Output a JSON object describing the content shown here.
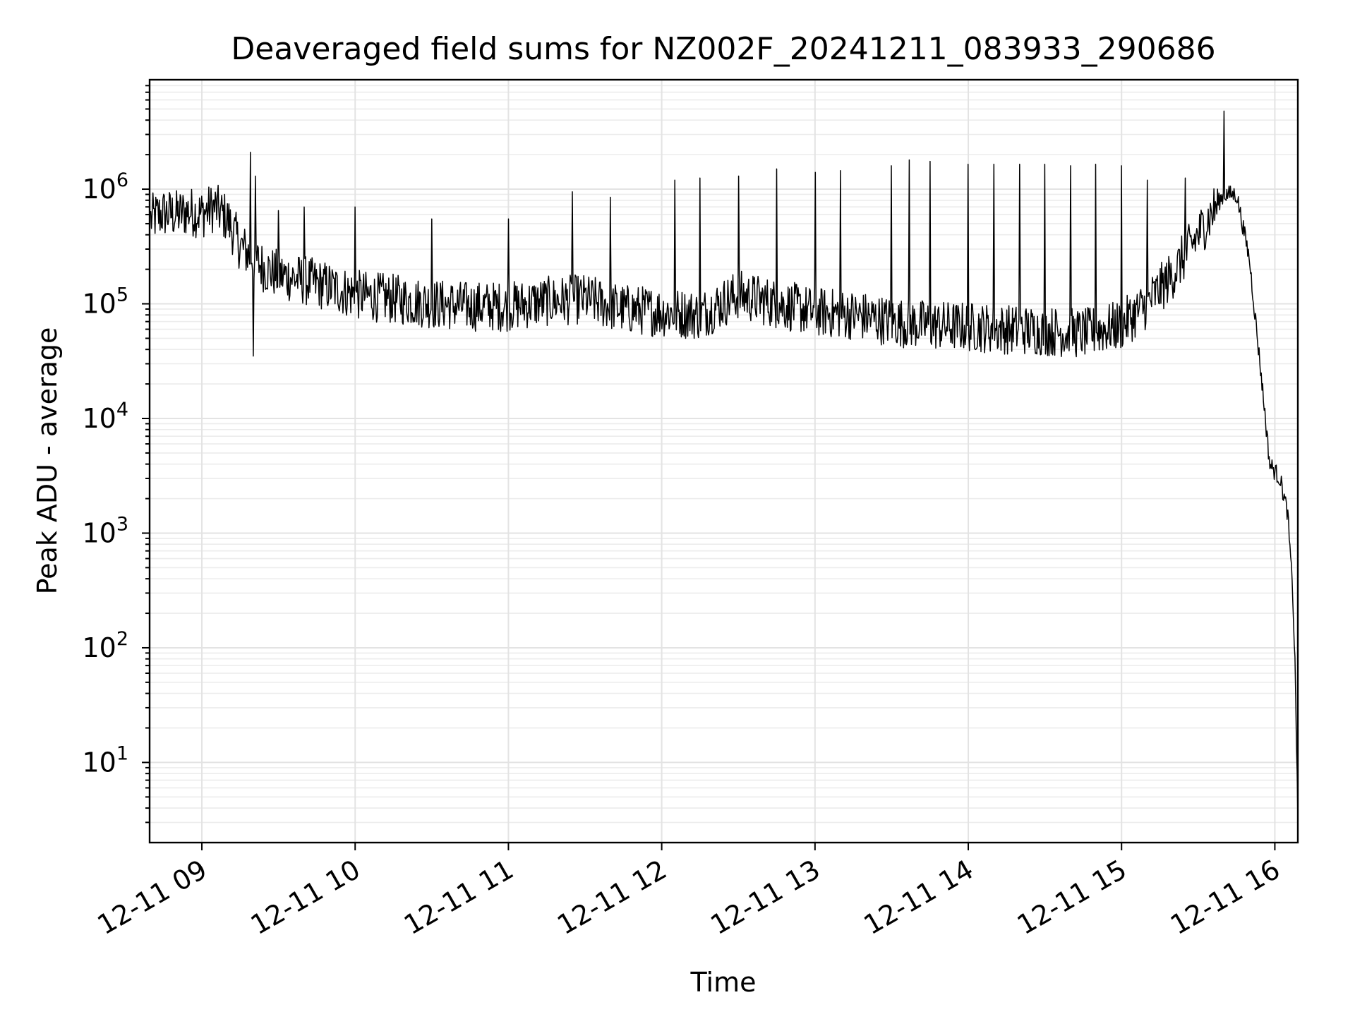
{
  "chart_data": {
    "type": "line",
    "title": "Deaveraged field sums for NZ002F_20241211_083933_290686",
    "xlabel": "Time",
    "ylabel": "Peak ADU - average",
    "x_scale": "time",
    "y_scale": "log",
    "xlim": [
      "2024-12-11 08:39:33",
      "2024-12-11 16:09:00"
    ],
    "ylim": [
      2,
      9000000
    ],
    "grid": true,
    "legend": "none",
    "line_color": "#000000",
    "x_ticks": [
      {
        "value": "2024-12-11 09:00",
        "label": "12-11 09"
      },
      {
        "value": "2024-12-11 10:00",
        "label": "12-11 10"
      },
      {
        "value": "2024-12-11 11:00",
        "label": "12-11 11"
      },
      {
        "value": "2024-12-11 12:00",
        "label": "12-11 12"
      },
      {
        "value": "2024-12-11 13:00",
        "label": "12-11 13"
      },
      {
        "value": "2024-12-11 14:00",
        "label": "12-11 14"
      },
      {
        "value": "2024-12-11 15:00",
        "label": "12-11 15"
      },
      {
        "value": "2024-12-11 16:00",
        "label": "12-11 16"
      }
    ],
    "y_ticks": [
      {
        "value": 10,
        "base": "10",
        "exp": "1"
      },
      {
        "value": 100,
        "base": "10",
        "exp": "2"
      },
      {
        "value": 1000,
        "base": "10",
        "exp": "3"
      },
      {
        "value": 10000,
        "base": "10",
        "exp": "4"
      },
      {
        "value": 100000,
        "base": "10",
        "exp": "5"
      },
      {
        "value": 1000000,
        "base": "10",
        "exp": "6"
      }
    ],
    "series": [
      {
        "points": [
          [
            "2024-12-11 08:40",
            550000
          ],
          [
            "2024-12-11 08:45",
            620000
          ],
          [
            "2024-12-11 08:50",
            600000
          ],
          [
            "2024-12-11 08:55",
            640000
          ],
          [
            "2024-12-11 09:00",
            610000
          ],
          [
            "2024-12-11 09:05",
            700000
          ],
          [
            "2024-12-11 09:10",
            550000
          ],
          [
            "2024-12-11 09:15",
            320000
          ],
          [
            "2024-12-11 09:20",
            250000
          ],
          [
            "2024-12-11 09:25",
            200000
          ],
          [
            "2024-12-11 09:30",
            180000
          ],
          [
            "2024-12-11 09:40",
            160000
          ],
          [
            "2024-12-11 09:50",
            140000
          ],
          [
            "2024-12-11 10:00",
            120000
          ],
          [
            "2024-12-11 10:15",
            110000
          ],
          [
            "2024-12-11 10:30",
            100000
          ],
          [
            "2024-12-11 10:45",
            95000
          ],
          [
            "2024-12-11 11:00",
            95000
          ],
          [
            "2024-12-11 11:15",
            105000
          ],
          [
            "2024-12-11 11:30",
            110000
          ],
          [
            "2024-12-11 11:45",
            90000
          ],
          [
            "2024-12-11 12:00",
            85000
          ],
          [
            "2024-12-11 12:15",
            80000
          ],
          [
            "2024-12-11 12:30",
            120000
          ],
          [
            "2024-12-11 12:45",
            100000
          ],
          [
            "2024-12-11 13:00",
            85000
          ],
          [
            "2024-12-11 13:15",
            80000
          ],
          [
            "2024-12-11 13:30",
            70000
          ],
          [
            "2024-12-11 13:45",
            65000
          ],
          [
            "2024-12-11 14:00",
            63000
          ],
          [
            "2024-12-11 14:15",
            60000
          ],
          [
            "2024-12-11 14:30",
            58000
          ],
          [
            "2024-12-11 14:45",
            55000
          ],
          [
            "2024-12-11 15:00",
            65000
          ],
          [
            "2024-12-11 15:10",
            100000
          ],
          [
            "2024-12-11 15:20",
            180000
          ],
          [
            "2024-12-11 15:30",
            400000
          ],
          [
            "2024-12-11 15:40",
            900000
          ],
          [
            "2024-12-11 15:45",
            900000
          ],
          [
            "2024-12-11 15:50",
            250000
          ],
          [
            "2024-12-11 15:55",
            20000
          ],
          [
            "2024-12-11 15:58",
            4000
          ],
          [
            "2024-12-11 16:02",
            3000
          ],
          [
            "2024-12-11 16:05",
            1500
          ],
          [
            "2024-12-11 16:07",
            300
          ],
          [
            "2024-12-11 16:08",
            60
          ],
          [
            "2024-12-11 16:09",
            3
          ]
        ],
        "spikes": [
          [
            "2024-12-11 09:19",
            2100000
          ],
          [
            "2024-12-11 09:20",
            35000
          ],
          [
            "2024-12-11 09:21",
            1300000
          ],
          [
            "2024-12-11 09:30",
            650000
          ],
          [
            "2024-12-11 09:40",
            700000
          ],
          [
            "2024-12-11 10:00",
            700000
          ],
          [
            "2024-12-11 10:30",
            550000
          ],
          [
            "2024-12-11 11:00",
            550000
          ],
          [
            "2024-12-11 11:25",
            950000
          ],
          [
            "2024-12-11 11:40",
            850000
          ],
          [
            "2024-12-11 12:05",
            1200000
          ],
          [
            "2024-12-11 12:15",
            1250000
          ],
          [
            "2024-12-11 12:30",
            1300000
          ],
          [
            "2024-12-11 12:45",
            1500000
          ],
          [
            "2024-12-11 13:00",
            1400000
          ],
          [
            "2024-12-11 13:10",
            1450000
          ],
          [
            "2024-12-11 13:30",
            1600000
          ],
          [
            "2024-12-11 13:37",
            1800000
          ],
          [
            "2024-12-11 13:45",
            1750000
          ],
          [
            "2024-12-11 14:00",
            1650000
          ],
          [
            "2024-12-11 14:10",
            1650000
          ],
          [
            "2024-12-11 14:20",
            1650000
          ],
          [
            "2024-12-11 14:30",
            1650000
          ],
          [
            "2024-12-11 14:40",
            1600000
          ],
          [
            "2024-12-11 14:50",
            1650000
          ],
          [
            "2024-12-11 15:00",
            1600000
          ],
          [
            "2024-12-11 15:10",
            1200000
          ],
          [
            "2024-12-11 15:25",
            1250000
          ],
          [
            "2024-12-11 15:40",
            4800000
          ]
        ]
      }
    ]
  }
}
